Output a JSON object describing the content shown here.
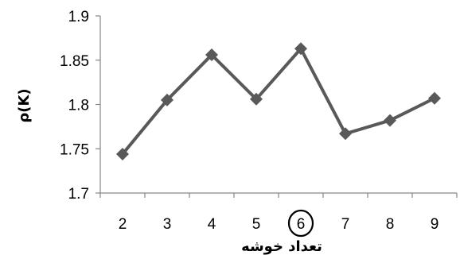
{
  "chart_data": {
    "type": "line",
    "title": "",
    "xlabel": "تعداد خوشه",
    "ylabel": "ρ(K)",
    "categories": [
      "2",
      "3",
      "4",
      "5",
      "6",
      "7",
      "8",
      "9"
    ],
    "x": [
      2,
      3,
      4,
      5,
      6,
      7,
      8,
      9
    ],
    "series": [
      {
        "values": [
          1.744,
          1.805,
          1.856,
          1.806,
          1.863,
          1.767,
          1.782,
          1.807
        ]
      }
    ],
    "ylim": [
      1.7,
      1.9
    ],
    "yticks": [
      "1.7",
      "1.75",
      "1.8",
      "1.85",
      "1.9"
    ],
    "grid": false,
    "legend": "none",
    "highlighted_category": "6",
    "colors": {
      "series": "#595959",
      "axis": "#868686",
      "text": "#000000"
    }
  }
}
